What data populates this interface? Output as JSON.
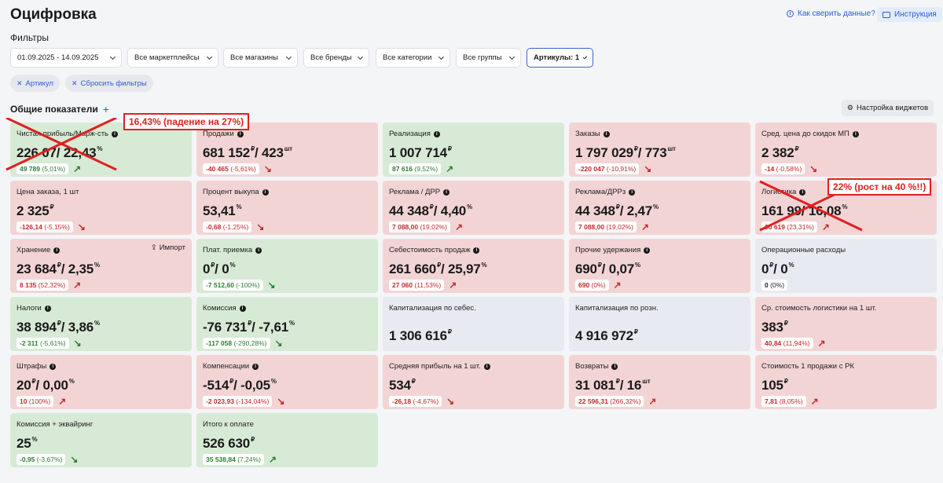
{
  "header": {
    "title": "Оцифровка",
    "help_label": "Как сверить данные?",
    "instruction_label": "Инструкция"
  },
  "filters": {
    "title": "Фильтры",
    "items": [
      {
        "label": "01.09.2025 - 14.09.2025"
      },
      {
        "label": "Все маркетплейсы"
      },
      {
        "label": "Все магазины"
      },
      {
        "label": "Все бренды"
      },
      {
        "label": "Все категории"
      },
      {
        "label": "Все группы"
      },
      {
        "label": "Артикулы: 1"
      }
    ],
    "chips": [
      {
        "label": "Артикул"
      },
      {
        "label": "Сбросить фильтры"
      }
    ]
  },
  "section": {
    "title": "Общие показатели",
    "widgets_button": "Настройка виджетов"
  },
  "cards": [
    {
      "title": "Чистая прибыль/Марж-сть",
      "value": "226 07",
      "unit1": "",
      "value2": "/ 22,43",
      "unit2": "%",
      "delta_amt": "49 789",
      "delta_pct": " (5,01%)",
      "trend": "up",
      "color": "green"
    },
    {
      "title": "Продажи",
      "value": "681 152",
      "unit1": "₽",
      "value2": "/ 423",
      "unit2": "шт",
      "delta_amt": "-40 465",
      "delta_pct": " (-5,61%)",
      "trend": "down",
      "color": "red"
    },
    {
      "title": "Реализация",
      "value": "1 007 714",
      "unit1": "₽",
      "value2": "",
      "unit2": "",
      "delta_amt": "87 616",
      "delta_pct": " (9,52%)",
      "trend": "up",
      "color": "green"
    },
    {
      "title": "Заказы",
      "value": "1 797 029",
      "unit1": "₽",
      "value2": "/ 773",
      "unit2": "шт",
      "delta_amt": "-220 047",
      "delta_pct": " (-10,91%)",
      "trend": "down",
      "color": "red"
    },
    {
      "title": "Сред. цена до скидок МП",
      "value": "2 382",
      "unit1": "₽",
      "value2": "",
      "unit2": "",
      "delta_amt": "-14",
      "delta_pct": " (-0,58%)",
      "trend": "down",
      "color": "red"
    },
    {
      "title": "Цена заказа, 1 шт",
      "value": "2 325",
      "unit1": "₽",
      "value2": "",
      "unit2": "",
      "delta_amt": "-126,14",
      "delta_pct": " (-5,15%)",
      "trend": "down",
      "color": "red"
    },
    {
      "title": "Процент выкупа",
      "value": "53,41",
      "unit1": "%",
      "value2": "",
      "unit2": "",
      "delta_amt": "-0,68",
      "delta_pct": " (-1,25%)",
      "trend": "down",
      "color": "red"
    },
    {
      "title": "Реклама / ДРР",
      "value": "44 348",
      "unit1": "₽",
      "value2": "/ 4,40",
      "unit2": "%",
      "delta_amt": "7 088,00",
      "delta_pct": " (19,02%)",
      "trend": "up",
      "color": "red"
    },
    {
      "title": "Реклама/ДРРз",
      "value": "44 348",
      "unit1": "₽",
      "value2": "/ 2,47",
      "unit2": "%",
      "delta_amt": "7 088,00",
      "delta_pct": " (19,02%)",
      "trend": "up",
      "color": "red"
    },
    {
      "title": "Логистика",
      "value": "161 99",
      "unit1": "",
      "value2": "/ 16,08",
      "unit2": "%",
      "delta_amt": "30 619",
      "delta_pct": " (23,31%)",
      "trend": "up",
      "color": "red"
    },
    {
      "title": "Хранение",
      "value": "23 684",
      "unit1": "₽",
      "value2": "/ 2,35",
      "unit2": "%",
      "delta_amt": "8 135",
      "delta_pct": " (52,32%)",
      "trend": "up",
      "color": "red",
      "import": "Импорт"
    },
    {
      "title": "Плат. приемка",
      "value": "0",
      "unit1": "₽",
      "value2": "/ 0",
      "unit2": "%",
      "delta_amt": "-7 512,60",
      "delta_pct": " (-100%)",
      "trend": "down",
      "color": "green"
    },
    {
      "title": "Себестоимость продаж",
      "value": "261 660",
      "unit1": "₽",
      "value2": "/ 25,97",
      "unit2": "%",
      "delta_amt": "27 060",
      "delta_pct": " (11,53%)",
      "trend": "up",
      "color": "red"
    },
    {
      "title": "Прочие удержания",
      "value": "690",
      "unit1": "₽",
      "value2": "/ 0,07",
      "unit2": "%",
      "delta_amt": "690",
      "delta_pct": " (0%)",
      "trend": "up",
      "color": "red"
    },
    {
      "title": "Операционные расходы",
      "value": "0",
      "unit1": "₽",
      "value2": "/ 0",
      "unit2": "%",
      "delta_amt": "0",
      "delta_pct": " (0%)",
      "trend": "none",
      "color": "gray"
    },
    {
      "title": "Налоги",
      "value": "38 894",
      "unit1": "₽",
      "value2": "/ 3,86",
      "unit2": "%",
      "delta_amt": "-2 311",
      "delta_pct": " (-5,61%)",
      "trend": "down",
      "color": "green"
    },
    {
      "title": "Комиссия",
      "value": "-76 731",
      "unit1": "₽",
      "value2": "/ -7,61",
      "unit2": "%",
      "delta_amt": "-117 058",
      "delta_pct": " (-290,28%)",
      "trend": "down",
      "color": "green"
    },
    {
      "title": "Капитализация по себес.",
      "value": "1 306 616",
      "unit1": "₽",
      "value2": "",
      "unit2": "",
      "delta_amt": "",
      "delta_pct": "",
      "trend": "none",
      "color": "gray"
    },
    {
      "title": "Капитализация по розн.",
      "value": "4 916 972",
      "unit1": "₽",
      "value2": "",
      "unit2": "",
      "delta_amt": "",
      "delta_pct": "",
      "trend": "none",
      "color": "gray"
    },
    {
      "title": "Ср. стоимость логистики на 1 шт.",
      "value": "383",
      "unit1": "₽",
      "value2": "",
      "unit2": "",
      "delta_amt": "40,84",
      "delta_pct": " (11,94%)",
      "trend": "up",
      "color": "red"
    },
    {
      "title": "Штрафы",
      "value": "20",
      "unit1": "₽",
      "value2": "/ 0,00",
      "unit2": "%",
      "delta_amt": "10",
      "delta_pct": " (100%)",
      "trend": "up",
      "color": "red"
    },
    {
      "title": "Компенсации",
      "value": "-514",
      "unit1": "₽",
      "value2": "/ -0,05",
      "unit2": "%",
      "delta_amt": "-2 023,93",
      "delta_pct": " (-134,04%)",
      "trend": "down",
      "color": "red"
    },
    {
      "title": "Средняя прибыль на 1 шт.",
      "value": "534",
      "unit1": "₽",
      "value2": "",
      "unit2": "",
      "delta_amt": "-26,18",
      "delta_pct": " (-4,67%)",
      "trend": "down",
      "color": "red"
    },
    {
      "title": "Возвраты",
      "value": "31 081",
      "unit1": "₽",
      "value2": "/ 16",
      "unit2": "шт",
      "delta_amt": "22 596,31",
      "delta_pct": " (266,32%)",
      "trend": "up",
      "color": "red"
    },
    {
      "title": "Стоимость 1 продажи с РК",
      "value": "105",
      "unit1": "₽",
      "value2": "",
      "unit2": "",
      "delta_amt": "7,81",
      "delta_pct": " (8,05%)",
      "trend": "up",
      "color": "red"
    },
    {
      "title": "Комиссия + эквайринг",
      "value": "25",
      "unit1": "%",
      "value2": "",
      "unit2": "",
      "delta_amt": "-0,95",
      "delta_pct": " (-3,67%)",
      "trend": "down",
      "color": "green"
    },
    {
      "title": "Итого к оплате",
      "value": "526 630",
      "unit1": "₽",
      "value2": "",
      "unit2": "",
      "delta_amt": "35 538,84",
      "delta_pct": " (7,24%)",
      "trend": "up",
      "color": "green"
    }
  ],
  "annotations": {
    "profit_note": "16,43% (падение на 27%)",
    "logistics_note": "22% (рост на 40 %!!)"
  }
}
